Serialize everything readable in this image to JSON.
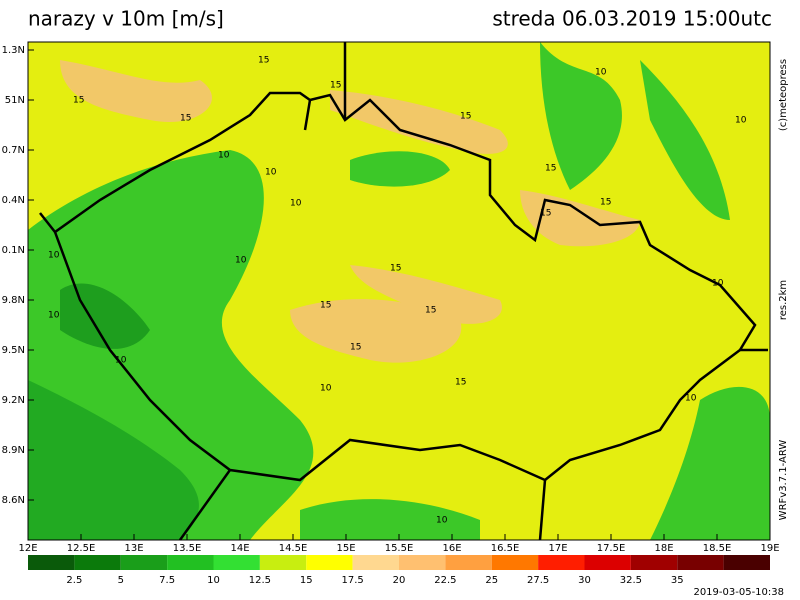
{
  "header": {
    "title": "narazy v 10m [m/s]",
    "date": "streda 06.03.2019 15:00utc"
  },
  "lat_labels": [
    "1.3N",
    "51N",
    "0.7N",
    "0.4N",
    "0.1N",
    "9.8N",
    "9.5N",
    "9.2N",
    "8.9N",
    "8.6N"
  ],
  "lon_labels": [
    "12E",
    "12.5E",
    "13E",
    "13.5E",
    "14E",
    "14.5E",
    "15E",
    "15.5E",
    "16E",
    "16.5E",
    "17E",
    "17.5E",
    "18E",
    "18.5E",
    "19E"
  ],
  "colorbar_labels": [
    "2.5",
    "5",
    "7.5",
    "10",
    "12.5",
    "15",
    "17.5",
    "20",
    "22.5",
    "25",
    "27.5",
    "30",
    "32.5",
    "35"
  ],
  "side_labels": [
    "(c)meteopress",
    "res.2km",
    "WRFv3.7.1-ARW"
  ],
  "contour_labels": [
    "15",
    "15",
    "15",
    "15",
    "15",
    "15",
    "15",
    "15",
    "15",
    "15",
    "15",
    "15",
    "15",
    "10",
    "10",
    "10",
    "10",
    "10",
    "10",
    "10",
    "10",
    "10",
    "10",
    "10",
    "10",
    "10"
  ],
  "footer": "2019-03-05-10:38"
}
